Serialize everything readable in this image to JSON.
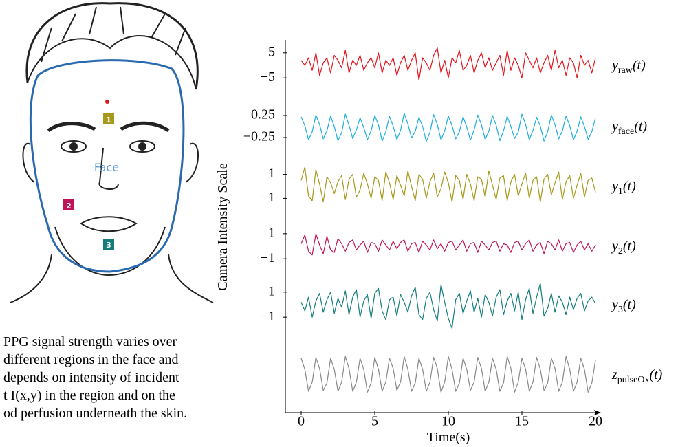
{
  "face": {
    "region_labels": [
      "1",
      "2",
      "3"
    ],
    "face_label": "Face"
  },
  "caption": [
    "PPG signal strength varies over",
    "different regions in the face and",
    "depends on intensity of incident",
    "t I(x,y) in the region and on the",
    "od perfusion underneath the skin."
  ],
  "chart_data": {
    "type": "line",
    "layout": "stacked",
    "x_label": "Time(s)",
    "y_label": "Camera Intensity Scale",
    "xlim": [
      0,
      20
    ],
    "xticks": [
      0,
      5,
      10,
      15,
      20
    ],
    "x": [
      0,
      0.25,
      0.5,
      0.75,
      1,
      1.25,
      1.5,
      1.75,
      2,
      2.25,
      2.5,
      2.75,
      3,
      3.25,
      3.5,
      3.75,
      4,
      4.25,
      4.5,
      4.75,
      5,
      5.25,
      5.5,
      5.75,
      6,
      6.25,
      6.5,
      6.75,
      7,
      7.25,
      7.5,
      7.75,
      8,
      8.25,
      8.5,
      8.75,
      9,
      9.25,
      9.5,
      9.75,
      10,
      10.25,
      10.5,
      10.75,
      11,
      11.25,
      11.5,
      11.75,
      12,
      12.25,
      12.5,
      12.75,
      13,
      13.25,
      13.5,
      13.75,
      14,
      14.25,
      14.5,
      14.75,
      15,
      15.25,
      15.5,
      15.75,
      16,
      16.25,
      16.5,
      16.75,
      17,
      17.25,
      17.5,
      17.75,
      18,
      18.25,
      18.5,
      18.75,
      19,
      19.25,
      19.5,
      19.75,
      20
    ],
    "series": [
      {
        "name_base": "y",
        "name_sub": "raw",
        "name_arg": "(t)",
        "color": "#e3131b",
        "ylim": [
          -11,
          11
        ],
        "yticks": [
          {
            "value": 5,
            "label": "5"
          },
          {
            "value": -5,
            "label": "−5"
          }
        ],
        "values": [
          2,
          0,
          3,
          -2,
          5,
          -4,
          1,
          3,
          -3,
          4,
          2,
          -1,
          6,
          -3,
          2,
          0,
          4,
          -2,
          1,
          3,
          -1,
          5,
          -3,
          2,
          0,
          3,
          -4,
          1,
          4,
          -2,
          2,
          5,
          -6,
          3,
          1,
          -2,
          4,
          7,
          -3,
          2,
          -5,
          3,
          1,
          6,
          -2,
          0,
          4,
          -3,
          2,
          5,
          -1,
          3,
          -2,
          1,
          4,
          -4,
          6,
          -2,
          3,
          0,
          -5,
          5,
          2,
          -1,
          3,
          -3,
          1,
          4,
          -2,
          6,
          -1,
          2,
          -4,
          3,
          1,
          -5,
          4,
          0,
          2,
          -3,
          3
        ]
      },
      {
        "name_base": "y",
        "name_sub": "face",
        "name_arg": "(t)",
        "color": "#1aaede",
        "ylim": [
          -0.625,
          0.625
        ],
        "yticks": [
          {
            "value": 0.25,
            "label": "0.25"
          },
          {
            "value": -0.25,
            "label": "−0.25"
          }
        ],
        "values": [
          0.22,
          0.02,
          -0.3,
          -0.12,
          0.26,
          0.05,
          -0.28,
          -0.1,
          0.24,
          0,
          -0.32,
          -0.14,
          0.28,
          0.03,
          -0.27,
          -0.08,
          0.2,
          -0.02,
          -0.3,
          -0.1,
          0.25,
          0.04,
          -0.33,
          -0.12,
          0.23,
          0.01,
          -0.29,
          -0.09,
          0.3,
          0.06,
          -0.26,
          -0.11,
          0.21,
          0,
          -0.34,
          -0.13,
          0.27,
          0.05,
          -0.3,
          -0.1,
          0.24,
          0.02,
          -0.28,
          -0.12,
          0.22,
          -0.01,
          -0.31,
          -0.08,
          0.26,
          0.04,
          -0.29,
          -0.11,
          0.25,
          0.03,
          -0.32,
          -0.1,
          0.23,
          0,
          -0.27,
          -0.13,
          0.28,
          0.05,
          -0.3,
          -0.09,
          0.21,
          0.01,
          -0.33,
          -0.12,
          0.26,
          0.04,
          -0.28,
          -0.1,
          0.24,
          0.02,
          -0.3,
          -0.11,
          0.22,
          0,
          -0.29,
          -0.12,
          0.2
        ]
      },
      {
        "name_base": "y",
        "name_sub": "1",
        "name_arg": "(t)",
        "color": "#a6991b",
        "ylim": [
          -2.3,
          2.3
        ],
        "yticks": [
          {
            "value": 1,
            "label": "1"
          },
          {
            "value": -1,
            "label": "−1"
          }
        ],
        "values": [
          0.5,
          1.6,
          -0.8,
          -1.2,
          1.4,
          0.2,
          -1.3,
          0.8,
          0.3,
          -0.6,
          0.4,
          0.9,
          -1.1,
          0.6,
          1.0,
          -0.9,
          -0.3,
          1.1,
          0.2,
          -1.0,
          0.8,
          0.5,
          -1.2,
          1.2,
          0.3,
          -1.1,
          0.9,
          0.1,
          -0.8,
          1.3,
          0.0,
          -1.2,
          1.0,
          0.6,
          -1.0,
          0.4,
          1.1,
          -0.9,
          -0.2,
          1.2,
          0.3,
          -1.3,
          0.9,
          0.5,
          -1.1,
          1.0,
          0.2,
          -1.2,
          0.8,
          0.6,
          -0.9,
          1.3,
          0.1,
          -1.1,
          0.7,
          0.9,
          -1.2,
          0.4,
          1.0,
          -0.8,
          0.2,
          1.1,
          -1.0,
          0.5,
          0.8,
          -1.3,
          0.6,
          1.0,
          -0.7,
          0.3,
          1.2,
          -1.1,
          0.4,
          0.9,
          -1.0,
          0.1,
          1.1,
          -0.9,
          0.5,
          0.7,
          -0.5
        ]
      },
      {
        "name_base": "y",
        "name_sub": "2",
        "name_arg": "(t)",
        "color": "#bf1459",
        "ylim": [
          -2.2,
          2.2
        ],
        "yticks": [
          {
            "value": 1,
            "label": "1"
          },
          {
            "value": -1,
            "label": "−1"
          }
        ],
        "values": [
          0.2,
          0.9,
          -0.4,
          -0.7,
          1.0,
          0.1,
          -0.6,
          0.8,
          -0.3,
          -0.5,
          0.6,
          0.2,
          -0.4,
          0.3,
          0.5,
          -0.3,
          0.1,
          0.4,
          -0.5,
          0.3,
          0.2,
          -0.4,
          0.5,
          0.1,
          -0.3,
          0.4,
          -0.2,
          0.3,
          0.5,
          -0.4,
          0.2,
          0.3,
          -0.5,
          0.4,
          0.1,
          -0.3,
          0.5,
          -0.2,
          0.2,
          -0.4,
          0.3,
          0.4,
          -0.3,
          0.1,
          0.5,
          -0.4,
          0.2,
          0.3,
          -0.5,
          0.4,
          0.1,
          -0.3,
          0.3,
          0.4,
          -0.4,
          0.2,
          0.1,
          -0.5,
          0.3,
          0.4,
          -0.3,
          0.2,
          0.5,
          -0.4,
          0.1,
          0.3,
          -0.6,
          0.4,
          0.2,
          -0.3,
          0.5,
          -0.4,
          0.2,
          0.3,
          -0.5,
          0.1,
          0.4,
          -0.3,
          0.2,
          -0.4,
          0.1
        ]
      },
      {
        "name_base": "y",
        "name_sub": "3",
        "name_arg": "(t)",
        "color": "#167d7d",
        "ylim": [
          -2.2,
          2.2
        ],
        "yticks": [
          {
            "value": 1,
            "label": "1"
          },
          {
            "value": -1,
            "label": "−1"
          }
        ],
        "values": [
          0.2,
          -0.5,
          0.6,
          -1.0,
          0.3,
          0.9,
          -0.6,
          0.4,
          1.0,
          -0.7,
          0.5,
          -0.2,
          1.1,
          -0.8,
          0.6,
          1.2,
          -1.0,
          0.3,
          0.8,
          -1.1,
          0.9,
          1.3,
          -0.5,
          -1.2,
          0.4,
          0.6,
          -0.9,
          0.8,
          0.2,
          -0.6,
          0.7,
          1.4,
          -0.8,
          -1.2,
          0.5,
          1.0,
          -0.4,
          -1.3,
          1.6,
          0.2,
          -1.1,
          -1.9,
          0.4,
          0.9,
          -0.7,
          0.3,
          1.1,
          -0.6,
          0.5,
          -1.0,
          0.8,
          0.2,
          -0.9,
          0.6,
          1.2,
          -0.8,
          0.3,
          0.9,
          -0.5,
          1.0,
          -1.2,
          0.4,
          1.3,
          -0.7,
          0.6,
          1.7,
          -0.9,
          -0.3,
          0.9,
          -0.6,
          0.7,
          0.2,
          -0.8,
          0.6,
          -0.4,
          0.5,
          0.9,
          -0.5,
          0.3,
          0.6,
          0.1
        ]
      },
      {
        "name_base": "z",
        "name_sub": "pulseOx",
        "name_arg": "(t)",
        "color": "#888888",
        "ylim": [
          -1.5,
          1.5
        ],
        "values": [
          0.9,
          0.3,
          -0.9,
          -0.4,
          0.95,
          0.35,
          -0.85,
          -0.45,
          0.9,
          0.3,
          -0.9,
          -0.4,
          1.0,
          0.35,
          -0.9,
          -0.4,
          0.9,
          0.3,
          -0.95,
          -0.45,
          0.95,
          0.3,
          -0.9,
          -0.4,
          0.9,
          0.35,
          -0.85,
          -0.4,
          1.0,
          0.3,
          -0.9,
          -0.45,
          0.9,
          0.3,
          -0.9,
          -0.4,
          0.95,
          0.35,
          -0.95,
          -0.4,
          1.0,
          0.3,
          -0.9,
          -0.45,
          0.9,
          0.3,
          -0.85,
          -0.4,
          0.95,
          0.35,
          -0.9,
          -0.4,
          0.9,
          0.3,
          -0.9,
          -0.45,
          1.0,
          0.35,
          -0.95,
          -0.4,
          0.9,
          0.3,
          -0.9,
          -0.4,
          0.95,
          0.3,
          -0.85,
          -0.45,
          0.9,
          0.35,
          -0.9,
          -0.4,
          1.0,
          0.3,
          -0.9,
          -0.4,
          0.9,
          0.3,
          -0.95,
          -0.45,
          0.8
        ]
      }
    ]
  }
}
